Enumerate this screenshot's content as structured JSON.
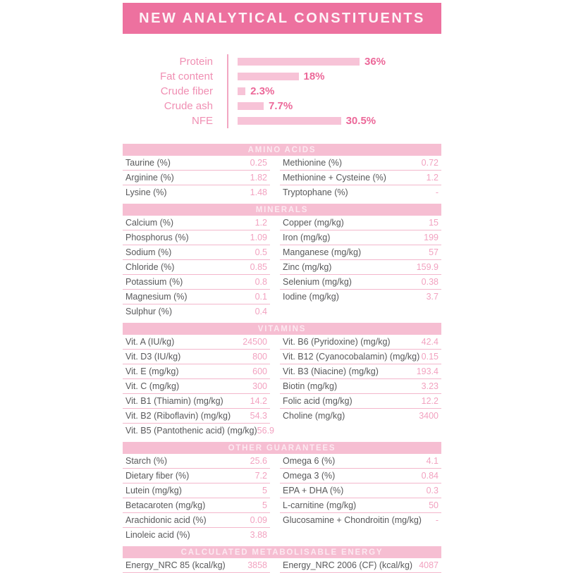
{
  "header": {
    "title": "NEW ANALYTICAL CONSTITUENTS"
  },
  "colors": {
    "banner_bg": "#ed719f",
    "band_bg": "#f6bed2",
    "band_text": "#fce9f1",
    "bar_fill": "#f7c3d7",
    "chart_label": "#f08fb3",
    "chart_value": "#ec6899",
    "axis_line": "#f2a6c2",
    "row_label": "#58585a",
    "row_value": "#f2a2c0",
    "row_border": "#f3b7cc"
  },
  "chart_data": {
    "type": "bar",
    "orientation": "horizontal",
    "title": "NEW ANALYTICAL CONSTITUENTS",
    "categories": [
      "Protein",
      "Fat content",
      "Crude fiber",
      "Crude ash",
      "NFE"
    ],
    "values": [
      36,
      18,
      2.3,
      7.7,
      30.5
    ],
    "value_labels": [
      "36%",
      "18%",
      "2.3%",
      "7.7%",
      "30.5%"
    ],
    "unit": "%",
    "xlim": [
      0,
      36
    ],
    "grid": false,
    "legend": false
  },
  "tables": [
    {
      "title": "AMINO ACIDS",
      "left": [
        {
          "label": "Taurine (%)",
          "value": "0.25"
        },
        {
          "label": "Arginine (%)",
          "value": "1.82"
        },
        {
          "label": "Lysine (%)",
          "value": "1.48"
        }
      ],
      "right": [
        {
          "label": "Methionine (%)",
          "value": "0.72"
        },
        {
          "label": "Methionine + Cysteine (%)",
          "value": "1.2"
        },
        {
          "label": "Tryptophane (%)",
          "value": "-"
        }
      ]
    },
    {
      "title": "MINERALS",
      "left": [
        {
          "label": "Calcium (%)",
          "value": "1.2"
        },
        {
          "label": "Phosphorus (%)",
          "value": "1.09"
        },
        {
          "label": "Sodium (%)",
          "value": "0.5"
        },
        {
          "label": "Chloride (%)",
          "value": "0.85"
        },
        {
          "label": "Potassium (%)",
          "value": "0.8"
        },
        {
          "label": "Magnesium (%)",
          "value": "0.1"
        },
        {
          "label": "Sulphur (%)",
          "value": "0.4"
        }
      ],
      "right": [
        {
          "label": "Copper (mg/kg)",
          "value": "15"
        },
        {
          "label": "Iron (mg/kg)",
          "value": "199"
        },
        {
          "label": "Manganese (mg/kg)",
          "value": "57"
        },
        {
          "label": "Zinc (mg/kg)",
          "value": "159.9"
        },
        {
          "label": "Selenium (mg/kg)",
          "value": "0.38"
        },
        {
          "label": "Iodine (mg/kg)",
          "value": "3.7"
        }
      ]
    },
    {
      "title": "VITAMINS",
      "left": [
        {
          "label": "Vit. A (IU/kg)",
          "value": "24500"
        },
        {
          "label": "Vit. D3 (IU/kg)",
          "value": "800"
        },
        {
          "label": "Vit. E (mg/kg)",
          "value": "600"
        },
        {
          "label": "Vit. C (mg/kg)",
          "value": "300"
        },
        {
          "label": "Vit. B1 (Thiamin) (mg/kg)",
          "value": "14.2"
        },
        {
          "label": "Vit. B2 (Riboflavin) (mg/kg)",
          "value": "54.3"
        },
        {
          "label": "Vit. B5 (Pantothenic acid) (mg/kg)",
          "value": "56.9"
        }
      ],
      "right": [
        {
          "label": "Vit. B6 (Pyridoxine) (mg/kg)",
          "value": "42.4"
        },
        {
          "label": "Vit. B12 (Cyanocobalamin) (mg/kg)",
          "value": "0.15"
        },
        {
          "label": "Vit. B3 (Niacine) (mg/kg)",
          "value": "193.4"
        },
        {
          "label": "Biotin (mg/kg)",
          "value": "3.23"
        },
        {
          "label": "Folic acid (mg/kg)",
          "value": "12.2"
        },
        {
          "label": "Choline (mg/kg)",
          "value": "3400"
        }
      ]
    },
    {
      "title": "OTHER GUARANTEES",
      "left": [
        {
          "label": "Starch (%)",
          "value": "25.6"
        },
        {
          "label": "Dietary fiber (%)",
          "value": "7.2"
        },
        {
          "label": "Lutein (mg/kg)",
          "value": "5"
        },
        {
          "label": "Betacaroten (mg/kg)",
          "value": "5"
        },
        {
          "label": "Arachidonic acid (%)",
          "value": "0.09"
        },
        {
          "label": "Linoleic acid (%)",
          "value": "3.88"
        }
      ],
      "right": [
        {
          "label": "Omega 6 (%)",
          "value": "4.1"
        },
        {
          "label": "Omega 3 (%)",
          "value": "0.84"
        },
        {
          "label": "EPA + DHA (%)",
          "value": "0.3"
        },
        {
          "label": "L-carnitine (mg/kg)",
          "value": "50"
        },
        {
          "label": "Glucosamine + Chondroitin (mg/kg)",
          "value": "-"
        }
      ]
    },
    {
      "title": "CALCULATED METABOLISABLE ENERGY",
      "keep_last_border": true,
      "left": [
        {
          "label": "Energy_NRC 85 (kcal/kg)",
          "value": "3858"
        }
      ],
      "right": [
        {
          "label": "Energy_NRC 2006 (CF) (kcal/kg)",
          "value": "4087"
        }
      ]
    }
  ]
}
